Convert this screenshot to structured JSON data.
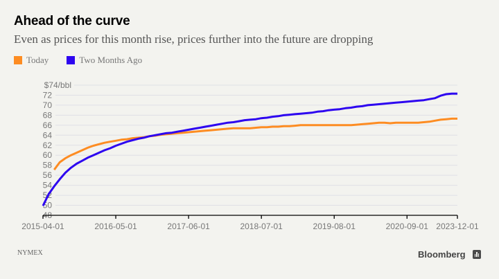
{
  "header": {
    "title": "Ahead of the curve",
    "subtitle": "Even as prices for this month rise, prices further into the future are dropping"
  },
  "footer": {
    "source": "NYMEX",
    "brand": "Bloomberg",
    "brand_icon": "bloomberg-chart-icon"
  },
  "chart_data": {
    "type": "line",
    "title": "Ahead of the curve",
    "subtitle": "Even as prices for this month rise, prices further into the future are dropping",
    "xlabel": "",
    "ylabel": "",
    "y_unit_label": "$74/bbl",
    "ylim": [
      48,
      74
    ],
    "yticks": [
      48,
      50,
      52,
      54,
      56,
      58,
      60,
      62,
      64,
      66,
      68,
      70,
      72,
      74
    ],
    "ytick_labels": [
      "48",
      "50",
      "52",
      "54",
      "56",
      "58",
      "60",
      "62",
      "64",
      "66",
      "68",
      "70",
      "72",
      "$74/bbl"
    ],
    "xtick_labels": [
      "2015-04-01",
      "2016-05-01",
      "2017-06-01",
      "2018-07-01",
      "2019-08-01",
      "2020-09-01",
      "2023-12-01"
    ],
    "grid": true,
    "legend_position": "top-left",
    "x": [
      "2015-04-01",
      "2015-05-01",
      "2015-06-01",
      "2015-07-01",
      "2015-08-01",
      "2015-09-01",
      "2015-10-01",
      "2015-11-01",
      "2015-12-01",
      "2016-01-01",
      "2016-02-01",
      "2016-03-01",
      "2016-04-01",
      "2016-05-01",
      "2016-06-01",
      "2016-07-01",
      "2016-08-01",
      "2016-09-01",
      "2016-10-01",
      "2016-11-01",
      "2016-12-01",
      "2017-01-01",
      "2017-02-01",
      "2017-03-01",
      "2017-04-01",
      "2017-05-01",
      "2017-06-01",
      "2017-07-01",
      "2017-08-01",
      "2017-09-01",
      "2017-10-01",
      "2017-11-01",
      "2017-12-01",
      "2018-01-01",
      "2018-02-01",
      "2018-03-01",
      "2018-04-01",
      "2018-05-01",
      "2018-06-01",
      "2018-07-01",
      "2018-08-01",
      "2018-09-01",
      "2018-10-01",
      "2018-11-01",
      "2018-12-01",
      "2019-01-01",
      "2019-02-01",
      "2019-03-01",
      "2019-04-01",
      "2019-05-01",
      "2019-06-01",
      "2019-07-01",
      "2019-08-01",
      "2019-09-01",
      "2019-10-01",
      "2019-11-01",
      "2019-12-01",
      "2020-01-01",
      "2020-02-01",
      "2020-03-01",
      "2020-04-01",
      "2020-05-01",
      "2020-06-01",
      "2020-07-01",
      "2020-08-01",
      "2020-09-01",
      "2020-10-01",
      "2020-11-01",
      "2020-12-01",
      "2021-06-01",
      "2021-12-01",
      "2022-06-01",
      "2022-12-01",
      "2023-06-01",
      "2023-12-01"
    ],
    "series": [
      {
        "name": "Today",
        "color": "#fd8c22",
        "values": [
          null,
          null,
          57.1,
          58.6,
          59.4,
          60.0,
          60.5,
          61.0,
          61.5,
          61.9,
          62.2,
          62.5,
          62.7,
          62.9,
          63.1,
          63.2,
          63.4,
          63.5,
          63.6,
          63.8,
          63.9,
          64.1,
          64.2,
          64.3,
          64.4,
          64.5,
          64.6,
          64.7,
          64.8,
          64.9,
          65.0,
          65.1,
          65.2,
          65.3,
          65.4,
          65.4,
          65.4,
          65.4,
          65.5,
          65.6,
          65.6,
          65.7,
          65.7,
          65.8,
          65.8,
          65.9,
          66.0,
          66.0,
          66.0,
          66.0,
          66.0,
          66.0,
          66.0,
          66.0,
          66.0,
          66.0,
          66.1,
          66.2,
          66.3,
          66.4,
          66.5,
          66.5,
          66.4,
          66.5,
          66.5,
          66.5,
          66.5,
          66.5,
          66.6,
          66.7,
          66.9,
          67.1,
          67.2,
          67.3,
          67.3
        ]
      },
      {
        "name": "Two Months Ago",
        "color": "#2d05f0",
        "values": [
          49.9,
          52.2,
          53.8,
          55.2,
          56.5,
          57.5,
          58.3,
          58.9,
          59.5,
          60.0,
          60.5,
          61.0,
          61.4,
          61.9,
          62.3,
          62.7,
          63.0,
          63.3,
          63.5,
          63.8,
          64.0,
          64.2,
          64.4,
          64.5,
          64.7,
          64.9,
          65.1,
          65.3,
          65.5,
          65.7,
          65.9,
          66.1,
          66.3,
          66.5,
          66.6,
          66.8,
          67.0,
          67.1,
          67.2,
          67.4,
          67.5,
          67.7,
          67.8,
          68.0,
          68.1,
          68.2,
          68.3,
          68.4,
          68.5,
          68.7,
          68.8,
          69.0,
          69.1,
          69.2,
          69.4,
          69.5,
          69.7,
          69.8,
          70.0,
          70.1,
          70.2,
          70.3,
          70.4,
          70.5,
          70.6,
          70.7,
          70.8,
          70.9,
          71.0,
          71.2,
          71.4,
          71.9,
          72.2,
          72.3,
          72.3
        ]
      }
    ]
  }
}
